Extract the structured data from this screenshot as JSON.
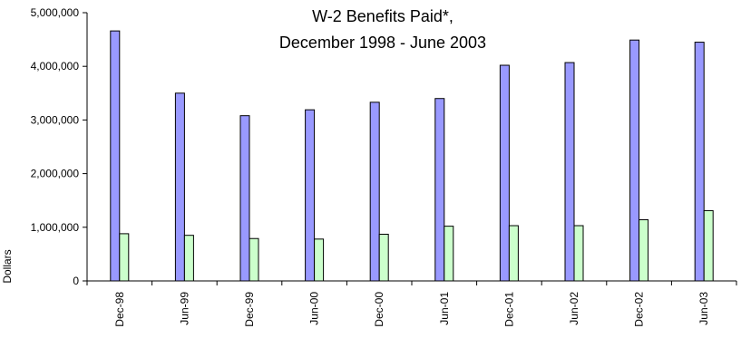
{
  "chart_data": {
    "type": "bar",
    "title_lines": [
      "W-2 Benefits Paid*,",
      "December 1998 - June 2003"
    ],
    "ylabel": "Dollars",
    "xlabel": "",
    "ylim": [
      0,
      5000000
    ],
    "yticks": [
      0,
      1000000,
      2000000,
      3000000,
      4000000,
      5000000
    ],
    "ytick_labels": [
      "0",
      "1,000,000",
      "2,000,000",
      "3,000,000",
      "4,000,000",
      "5,000,000"
    ],
    "categories": [
      "Dec-98",
      "Jun-99",
      "Dec-99",
      "Jun-00",
      "Dec-00",
      "Jun-01",
      "Dec-01",
      "Jun-02",
      "Dec-02",
      "Jun-03"
    ],
    "series": [
      {
        "color": "#9999ff",
        "values": [
          4660000,
          3500000,
          3080000,
          3190000,
          3330000,
          3400000,
          4020000,
          4070000,
          4490000,
          4450000
        ]
      },
      {
        "color": "#ccffcc",
        "values": [
          880000,
          850000,
          790000,
          780000,
          870000,
          1020000,
          1030000,
          1030000,
          1140000,
          1310000
        ]
      }
    ],
    "grid": false,
    "legend": "none"
  }
}
